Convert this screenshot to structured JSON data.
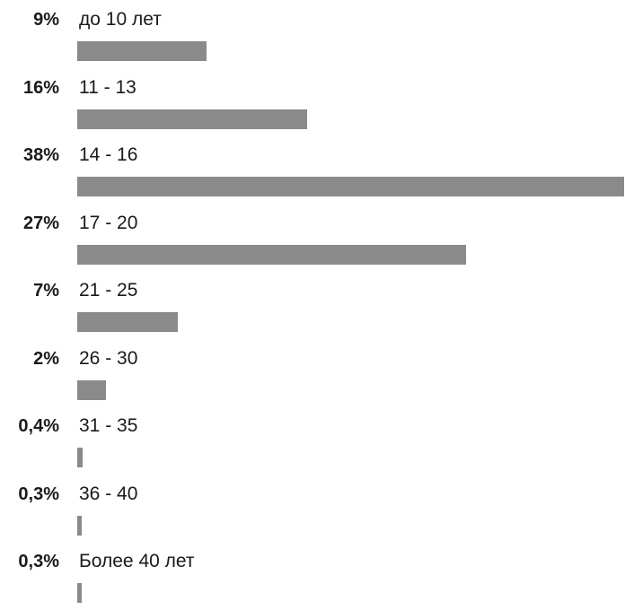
{
  "chart_data": {
    "type": "bar",
    "orientation": "horizontal",
    "categories": [
      "до 10 лет",
      "11 - 13",
      "14 - 16",
      "17 - 20",
      "21 - 25",
      "26 - 30",
      "31 - 35",
      "36 - 40",
      "Более 40 лет"
    ],
    "values": [
      9,
      16,
      38,
      27,
      7,
      2,
      0.4,
      0.3,
      0.3
    ],
    "value_labels": [
      "9%",
      "16%",
      "38%",
      "27%",
      "7%",
      "2%",
      "0,4%",
      "0,3%",
      "0,3%"
    ],
    "unit": "%",
    "xlim": [
      0,
      38
    ],
    "bar_color": "#8a8a8a",
    "grid": false,
    "legend": "none"
  }
}
